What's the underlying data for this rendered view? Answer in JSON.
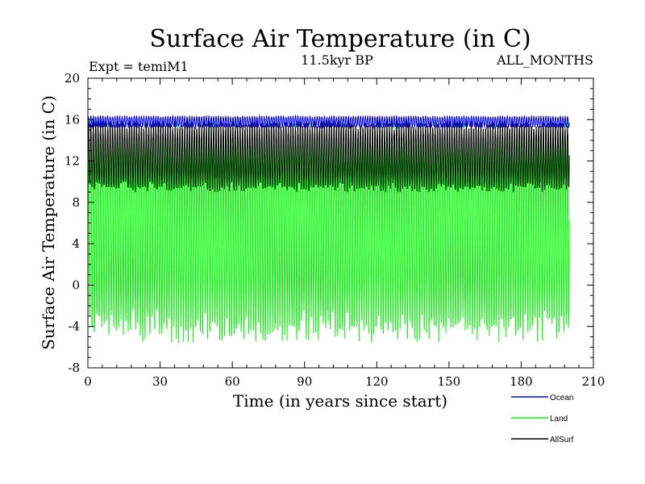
{
  "chart_data": {
    "type": "line",
    "title": "Surface Air Temperature (in C)",
    "subtitle_left": "Expt = temiM1",
    "subtitle_center": "11.5kyr BP",
    "subtitle_right": "ALL_MONTHS",
    "xlabel": "Time (in years since start)",
    "ylabel": "Surface Air Temperature (in C)",
    "xlim": [
      0,
      210
    ],
    "ylim": [
      -8,
      20
    ],
    "x_ticks": [
      "0",
      "30",
      "60",
      "90",
      "120",
      "150",
      "180",
      "210"
    ],
    "y_ticks": [
      "-8",
      "-4",
      "0",
      "4",
      "8",
      "12",
      "16",
      "20"
    ],
    "x_end": 200,
    "legend_position": "bottom-right",
    "series": [
      {
        "name": "Land",
        "color": "#00ff00",
        "seasonal_min": -4.0,
        "seasonal_max": 14.5,
        "description_values": {
          "mean_low": -4,
          "mean_high": 14.5
        }
      },
      {
        "name": "AllSurf",
        "color": "#000000",
        "seasonal_min": 9.5,
        "seasonal_max": 15.5
      },
      {
        "name": "Ocean",
        "color": "#0000ff",
        "seasonal_min": 15.3,
        "seasonal_max": 16.3
      }
    ],
    "legend": [
      {
        "name": "Ocean",
        "color": "#0000ff"
      },
      {
        "name": "Land",
        "color": "#00ff00"
      },
      {
        "name": "AllSurf",
        "color": "#000000"
      }
    ]
  }
}
